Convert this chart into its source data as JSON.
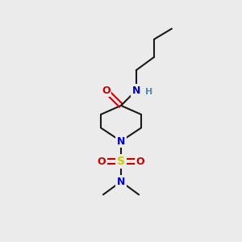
{
  "bg_color": "#ebebeb",
  "atom_colors": {
    "C": "#1a1a1a",
    "N": "#0000cc",
    "O": "#cc0000",
    "S": "#cccc00",
    "H": "#5588aa"
  },
  "bond_color": "#1a1a1a",
  "bond_width": 1.5,
  "figsize": [
    3.0,
    3.0
  ],
  "dpi": 100,
  "xlim": [
    0,
    10
  ],
  "ylim": [
    0,
    10
  ]
}
